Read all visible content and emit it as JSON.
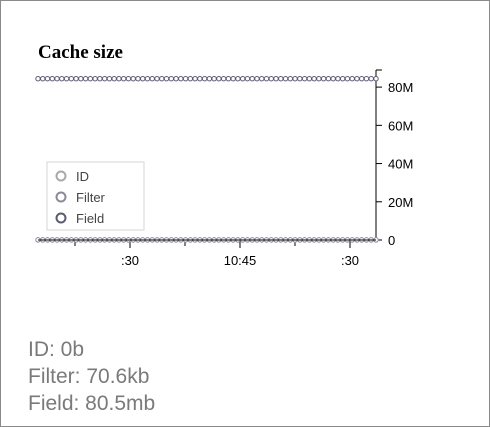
{
  "chart_data": {
    "type": "line",
    "title": "Cache size",
    "xlabel": "",
    "ylabel": "",
    "x_ticks": [
      ":30",
      "10:45",
      ":30"
    ],
    "y_ticks": [
      "0",
      "20M",
      "40M",
      "60M",
      "80M"
    ],
    "ylim": [
      0,
      90000000
    ],
    "y_tick_values": [
      0,
      20000000,
      40000000,
      60000000,
      80000000
    ],
    "legend_position": "lower-left",
    "series": [
      {
        "name": "ID",
        "color": "#a9a9a9",
        "values": [
          0,
          0,
          0,
          0,
          0,
          0,
          0,
          0,
          0,
          0,
          0,
          0,
          0,
          0,
          0,
          0,
          0,
          0,
          0,
          0,
          0,
          0,
          0,
          0,
          0,
          0,
          0,
          0,
          0,
          0,
          0,
          0,
          0,
          0,
          0,
          0,
          0,
          0,
          0,
          0,
          0,
          0,
          0,
          0,
          0,
          0,
          0,
          0,
          0,
          0,
          0,
          0,
          0,
          0,
          0,
          0,
          0,
          0,
          0,
          0,
          0,
          0,
          0,
          0,
          0,
          0,
          0,
          0,
          0,
          0,
          0,
          0
        ]
      },
      {
        "name": "Filter",
        "color": "#8a8a9a",
        "values": [
          70600,
          70600,
          70600,
          70600,
          70600,
          70600,
          70600,
          70600,
          70600,
          70600,
          70600,
          70600,
          70600,
          70600,
          70600,
          70600,
          70600,
          70600,
          70600,
          70600,
          70600,
          70600,
          70600,
          70600,
          70600,
          70600,
          70600,
          70600,
          70600,
          70600,
          70600,
          70600,
          70600,
          70600,
          70600,
          70600,
          70600,
          70600,
          70600,
          70600,
          70600,
          70600,
          70600,
          70600,
          70600,
          70600,
          70600,
          70600,
          70600,
          70600,
          70600,
          70600,
          70600,
          70600,
          70600,
          70600,
          70600,
          70600,
          70600,
          70600,
          70600,
          70600,
          70600,
          70600,
          70600,
          70600,
          70600,
          70600,
          70600,
          70600,
          70600,
          70600
        ]
      },
      {
        "name": "Field",
        "color": "#5a5a72",
        "values": [
          84400000,
          84400000,
          84400000,
          84400000,
          84400000,
          84400000,
          84400000,
          84400000,
          84400000,
          84400000,
          84400000,
          84400000,
          84400000,
          84400000,
          84400000,
          84400000,
          84400000,
          84400000,
          84400000,
          84400000,
          84400000,
          84400000,
          84400000,
          84400000,
          84400000,
          84400000,
          84400000,
          84400000,
          84400000,
          84400000,
          84400000,
          84400000,
          84400000,
          84400000,
          84400000,
          84400000,
          84400000,
          84400000,
          84400000,
          84400000,
          84400000,
          84400000,
          84400000,
          84400000,
          84400000,
          84400000,
          84400000,
          84400000,
          84400000,
          84400000,
          84400000,
          84400000,
          84400000,
          84400000,
          84400000,
          84400000,
          84400000,
          84400000,
          84400000,
          84400000,
          84400000,
          84400000,
          84400000,
          84400000,
          84400000,
          84400000,
          84400000,
          84400000,
          84400000,
          84400000,
          84400000,
          84400000
        ]
      }
    ]
  },
  "stats": {
    "id": "ID: 0b",
    "filter": "Filter: 70.6kb",
    "field": "Field: 80.5mb"
  }
}
